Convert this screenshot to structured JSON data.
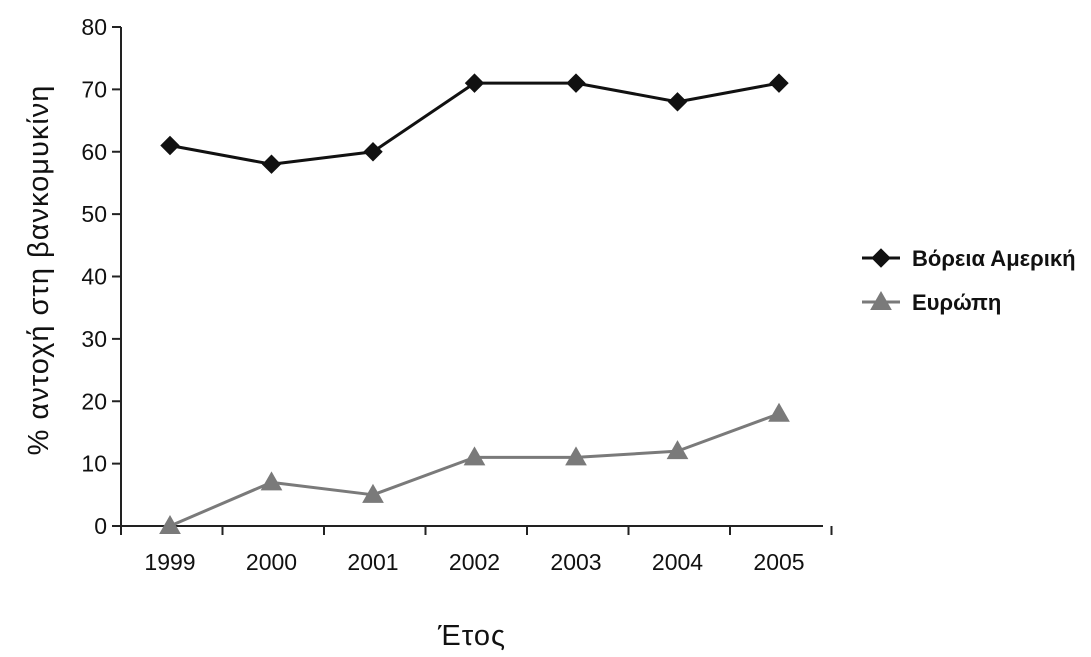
{
  "chart_data": {
    "type": "line",
    "title": "",
    "xlabel": "Έτος",
    "ylabel": "% αντοχή στη βανκομυκίνη",
    "categories": [
      "1999",
      "2000",
      "2001",
      "2002",
      "2003",
      "2004",
      "2005"
    ],
    "ylim": [
      0,
      80
    ],
    "yticks": [
      "0",
      "10",
      "20",
      "30",
      "40",
      "50",
      "60",
      "70",
      "80"
    ],
    "grid": false,
    "legend_position": "right",
    "series": [
      {
        "name": "Βόρεια Αμερική",
        "marker": "diamond",
        "color": "#111111",
        "values": [
          61,
          58,
          60,
          71,
          71,
          68,
          71
        ]
      },
      {
        "name": "Ευρώπη",
        "marker": "triangle",
        "color": "#7a7a7a",
        "values": [
          0,
          7,
          5,
          11,
          11,
          12,
          18
        ]
      }
    ]
  }
}
